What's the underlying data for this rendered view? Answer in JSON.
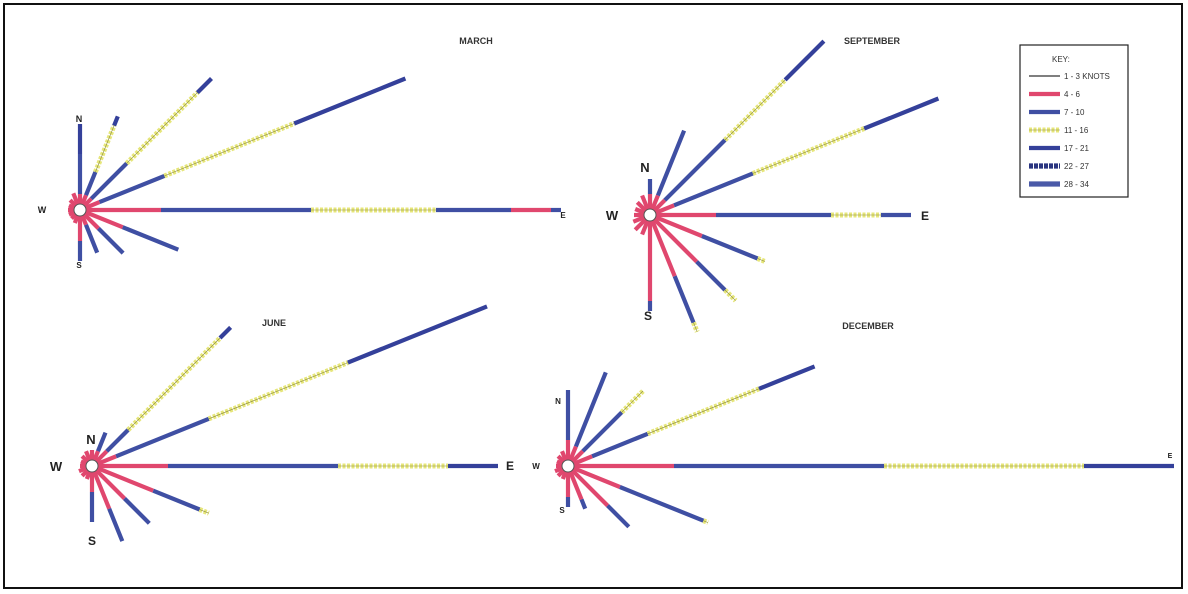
{
  "key": {
    "title": "KEY:",
    "entries": [
      {
        "label": "1 - 3 KNOTS",
        "band": "calm"
      },
      {
        "label": "4 - 6",
        "band": "light"
      },
      {
        "label": "7 - 10",
        "band": "moderate"
      },
      {
        "label": "11 - 16",
        "band": "fresh"
      },
      {
        "label": "17 - 21",
        "band": "strong"
      },
      {
        "label": "22 - 27",
        "band": "gale"
      },
      {
        "label": "28 - 34",
        "band": "storm"
      }
    ]
  },
  "band_colors": {
    "calm": "#555555",
    "light": "#e0476e",
    "moderate": "#3f4fa3",
    "fresh": "#e6e67a",
    "strong": "#34409a",
    "gale": "#2a3580",
    "storm": "#4a5aa8"
  },
  "roses": [
    {
      "id": "march",
      "title": "MARCH",
      "labels": {
        "north": "N",
        "south": "S",
        "west": "W",
        "east": "E"
      },
      "arms": [
        {
          "bearing": 0,
          "bands": [
            [
              "light",
              10
            ],
            [
              "moderate",
              40
            ],
            [
              "strong",
              30
            ]
          ]
        },
        {
          "bearing": 22,
          "bands": [
            [
              "light",
              10
            ],
            [
              "moderate",
              25
            ],
            [
              "fresh",
              50
            ],
            [
              "strong",
              10
            ]
          ]
        },
        {
          "bearing": 45,
          "bands": [
            [
              "light",
              10
            ],
            [
              "moderate",
              50
            ],
            [
              "fresh",
              100
            ],
            [
              "strong",
              20
            ]
          ]
        },
        {
          "bearing": 68,
          "bands": [
            [
              "light",
              15
            ],
            [
              "moderate",
              70
            ],
            [
              "fresh",
              140
            ],
            [
              "strong",
              120
            ]
          ]
        },
        {
          "bearing": 90,
          "bands": [
            [
              "light",
              75
            ],
            [
              "moderate",
              150
            ],
            [
              "fresh",
              125
            ],
            [
              "moderate",
              75
            ],
            [
              "light",
              40
            ],
            [
              "moderate",
              10
            ]
          ]
        },
        {
          "bearing": 112,
          "bands": [
            [
              "light",
              40
            ],
            [
              "moderate",
              60
            ]
          ]
        },
        {
          "bearing": 135,
          "bands": [
            [
              "light",
              20
            ],
            [
              "moderate",
              35
            ]
          ]
        },
        {
          "bearing": 158,
          "bands": [
            [
              "light",
              10
            ],
            [
              "moderate",
              30
            ]
          ]
        },
        {
          "bearing": 180,
          "bands": [
            [
              "light",
              25
            ],
            [
              "moderate",
              20
            ]
          ]
        },
        {
          "bearing": 202,
          "bands": [
            [
              "light",
              8
            ]
          ]
        },
        {
          "bearing": 225,
          "bands": [
            [
              "light",
              6
            ]
          ]
        },
        {
          "bearing": 248,
          "bands": [
            [
              "light",
              6
            ]
          ]
        },
        {
          "bearing": 270,
          "bands": [
            [
              "light",
              6
            ]
          ]
        },
        {
          "bearing": 292,
          "bands": [
            [
              "light",
              6
            ]
          ]
        },
        {
          "bearing": 315,
          "bands": [
            [
              "light",
              8
            ]
          ]
        },
        {
          "bearing": 338,
          "bands": [
            [
              "light",
              12
            ]
          ]
        }
      ]
    },
    {
      "id": "september",
      "title": "SEPTEMBER",
      "labels": {
        "north": "N",
        "south": "S",
        "west": "W",
        "east": "E"
      },
      "arms": [
        {
          "bearing": 0,
          "bands": [
            [
              "light",
              15
            ],
            [
              "moderate",
              15
            ]
          ]
        },
        {
          "bearing": 22,
          "bands": [
            [
              "light",
              15
            ],
            [
              "moderate",
              70
            ]
          ]
        },
        {
          "bearing": 45,
          "bands": [
            [
              "light",
              15
            ],
            [
              "moderate",
              85
            ],
            [
              "fresh",
              85
            ],
            [
              "strong",
              55
            ]
          ]
        },
        {
          "bearing": 68,
          "bands": [
            [
              "light",
              20
            ],
            [
              "moderate",
              85
            ],
            [
              "fresh",
              120
            ],
            [
              "strong",
              80
            ]
          ]
        },
        {
          "bearing": 90,
          "bands": [
            [
              "light",
              60
            ],
            [
              "moderate",
              115
            ],
            [
              "fresh",
              50
            ],
            [
              "moderate",
              30
            ]
          ]
        },
        {
          "bearing": 112,
          "bands": [
            [
              "light",
              50
            ],
            [
              "moderate",
              60
            ],
            [
              "fresh",
              8
            ]
          ]
        },
        {
          "bearing": 135,
          "bands": [
            [
              "light",
              60
            ],
            [
              "moderate",
              40
            ],
            [
              "fresh",
              15
            ]
          ]
        },
        {
          "bearing": 158,
          "bands": [
            [
              "light",
              60
            ],
            [
              "moderate",
              50
            ],
            [
              "fresh",
              10
            ]
          ]
        },
        {
          "bearing": 180,
          "bands": [
            [
              "light",
              80
            ],
            [
              "moderate",
              10
            ]
          ]
        },
        {
          "bearing": 202,
          "bands": [
            [
              "light",
              15
            ]
          ]
        },
        {
          "bearing": 225,
          "bands": [
            [
              "light",
              15
            ]
          ]
        },
        {
          "bearing": 248,
          "bands": [
            [
              "light",
              12
            ]
          ]
        },
        {
          "bearing": 270,
          "bands": [
            [
              "light",
              10
            ]
          ]
        },
        {
          "bearing": 292,
          "bands": [
            [
              "light",
              10
            ]
          ]
        },
        {
          "bearing": 315,
          "bands": [
            [
              "light",
              12
            ]
          ]
        },
        {
          "bearing": 338,
          "bands": [
            [
              "light",
              15
            ]
          ]
        }
      ]
    },
    {
      "id": "june",
      "title": "JUNE",
      "labels": {
        "north": "N",
        "south": "S",
        "west": "W",
        "east": "E"
      },
      "arms": [
        {
          "bearing": 0,
          "bands": [
            [
              "light",
              10
            ]
          ]
        },
        {
          "bearing": 22,
          "bands": [
            [
              "light",
              10
            ],
            [
              "moderate",
              20
            ]
          ]
        },
        {
          "bearing": 45,
          "bands": [
            [
              "light",
              15
            ],
            [
              "moderate",
              30
            ],
            [
              "fresh",
              130
            ],
            [
              "strong",
              15
            ]
          ]
        },
        {
          "bearing": 68,
          "bands": [
            [
              "light",
              20
            ],
            [
              "moderate",
              100
            ],
            [
              "fresh",
              150
            ],
            [
              "strong",
              150
            ]
          ]
        },
        {
          "bearing": 90,
          "bands": [
            [
              "light",
              70
            ],
            [
              "moderate",
              170
            ],
            [
              "fresh",
              110
            ],
            [
              "strong",
              50
            ]
          ]
        },
        {
          "bearing": 112,
          "bands": [
            [
              "light",
              60
            ],
            [
              "moderate",
              50
            ],
            [
              "fresh",
              10
            ]
          ]
        },
        {
          "bearing": 135,
          "bands": [
            [
              "light",
              40
            ],
            [
              "moderate",
              35
            ]
          ]
        },
        {
          "bearing": 158,
          "bands": [
            [
              "light",
              40
            ],
            [
              "moderate",
              35
            ]
          ]
        },
        {
          "bearing": 180,
          "bands": [
            [
              "light",
              20
            ],
            [
              "moderate",
              30
            ]
          ]
        },
        {
          "bearing": 202,
          "bands": [
            [
              "light",
              8
            ]
          ]
        },
        {
          "bearing": 225,
          "bands": [
            [
              "light",
              8
            ]
          ]
        },
        {
          "bearing": 248,
          "bands": [
            [
              "light",
              8
            ]
          ]
        },
        {
          "bearing": 270,
          "bands": [
            [
              "light",
              6
            ]
          ]
        },
        {
          "bearing": 292,
          "bands": [
            [
              "light",
              6
            ]
          ]
        },
        {
          "bearing": 315,
          "bands": [
            [
              "light",
              8
            ]
          ]
        },
        {
          "bearing": 338,
          "bands": [
            [
              "light",
              10
            ]
          ]
        }
      ]
    },
    {
      "id": "december",
      "title": "DECEMBER",
      "labels": {
        "north": "N",
        "south": "S",
        "west": "W",
        "east": "E"
      },
      "arms": [
        {
          "bearing": 0,
          "bands": [
            [
              "light",
              20
            ],
            [
              "moderate",
              50
            ]
          ]
        },
        {
          "bearing": 22,
          "bands": [
            [
              "light",
              15
            ],
            [
              "moderate",
              80
            ]
          ]
        },
        {
          "bearing": 45,
          "bands": [
            [
              "light",
              15
            ],
            [
              "moderate",
              55
            ],
            [
              "fresh",
              30
            ]
          ]
        },
        {
          "bearing": 68,
          "bands": [
            [
              "light",
              20
            ],
            [
              "moderate",
              60
            ],
            [
              "fresh",
              120
            ],
            [
              "strong",
              60
            ]
          ]
        },
        {
          "bearing": 90,
          "bands": [
            [
              "light",
              100
            ],
            [
              "moderate",
              210
            ],
            [
              "fresh",
              200
            ],
            [
              "strong",
              90
            ]
          ]
        },
        {
          "bearing": 112,
          "bands": [
            [
              "light",
              50
            ],
            [
              "moderate",
              90
            ],
            [
              "fresh",
              5
            ]
          ]
        },
        {
          "bearing": 135,
          "bands": [
            [
              "light",
              50
            ],
            [
              "moderate",
              30
            ]
          ]
        },
        {
          "bearing": 158,
          "bands": [
            [
              "light",
              30
            ],
            [
              "moderate",
              10
            ]
          ]
        },
        {
          "bearing": 180,
          "bands": [
            [
              "light",
              25
            ],
            [
              "moderate",
              10
            ]
          ]
        },
        {
          "bearing": 202,
          "bands": [
            [
              "light",
              8
            ]
          ]
        },
        {
          "bearing": 225,
          "bands": [
            [
              "light",
              8
            ]
          ]
        },
        {
          "bearing": 248,
          "bands": [
            [
              "light",
              8
            ]
          ]
        },
        {
          "bearing": 270,
          "bands": [
            [
              "light",
              6
            ]
          ]
        },
        {
          "bearing": 292,
          "bands": [
            [
              "light",
              6
            ]
          ]
        },
        {
          "bearing": 315,
          "bands": [
            [
              "light",
              8
            ]
          ]
        },
        {
          "bearing": 338,
          "bands": [
            [
              "light",
              10
            ]
          ]
        }
      ]
    }
  ]
}
